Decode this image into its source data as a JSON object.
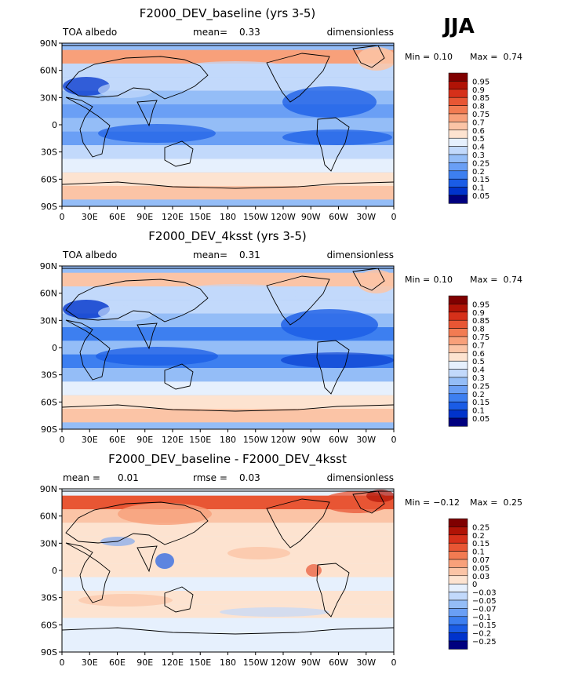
{
  "season_label": "JJA",
  "colors": {
    "baseline_scale": [
      "#00007f",
      "#0033cc",
      "#1a5ce6",
      "#3d7ff0",
      "#6a9ff5",
      "#94bdf7",
      "#c2d9fb",
      "#e6f0fd",
      "#fde3d0",
      "#fbc4a6",
      "#f8a07a",
      "#f27b52",
      "#e85634",
      "#d6301a",
      "#b01306",
      "#7f0000"
    ],
    "diff_scale": [
      "#00007f",
      "#0033cc",
      "#1a5ce6",
      "#3d7ff0",
      "#6a9ff5",
      "#94bdf7",
      "#c2d9fb",
      "#e6f0fd",
      "#fde3d0",
      "#fbc4a6",
      "#f8a07a",
      "#f27b52",
      "#e85634",
      "#d6301a",
      "#b01306",
      "#7f0000"
    ]
  },
  "lat_ticks": [
    "90N",
    "60N",
    "30N",
    "0",
    "30S",
    "60S",
    "90S"
  ],
  "lon_ticks": [
    "0",
    "30E",
    "60E",
    "90E",
    "120E",
    "150E",
    "180",
    "150W",
    "120W",
    "90W",
    "60W",
    "30W",
    "0"
  ],
  "chart_data": [
    {
      "type": "heatmap",
      "title": "F2000_DEV_baseline (yrs 3-5)",
      "left_text": "TOA albedo",
      "center_label": "mean=",
      "center_value": "0.33",
      "right_text": "dimensionless",
      "min_label": "Min =",
      "min_value": "0.10",
      "max_label": "Max =",
      "max_value": "0.74",
      "colorbar_labels": [
        "0.95",
        "0.9",
        "0.85",
        "0.8",
        "0.75",
        "0.7",
        "0.6",
        "0.5",
        "0.4",
        "0.3",
        "0.25",
        "0.2",
        "0.15",
        "0.1",
        "0.05"
      ],
      "zonal_profile": [
        [
          75,
          0.72
        ],
        [
          60,
          0.4
        ],
        [
          45,
          0.38
        ],
        [
          30,
          0.3
        ],
        [
          15,
          0.22
        ],
        [
          0,
          0.3
        ],
        [
          -15,
          0.22
        ],
        [
          -30,
          0.32
        ],
        [
          -45,
          0.48
        ],
        [
          -60,
          0.55
        ],
        [
          -75,
          0.7
        ]
      ]
    },
    {
      "type": "heatmap",
      "title": "F2000_DEV_4ksst (yrs 3-5)",
      "left_text": "TOA albedo",
      "center_label": "mean=",
      "center_value": "0.31",
      "right_text": "dimensionless",
      "min_label": "Min =",
      "min_value": "0.10",
      "max_label": "Max =",
      "max_value": "0.74",
      "colorbar_labels": [
        "0.95",
        "0.9",
        "0.85",
        "0.8",
        "0.75",
        "0.7",
        "0.6",
        "0.5",
        "0.4",
        "0.3",
        "0.25",
        "0.2",
        "0.15",
        "0.1",
        "0.05"
      ],
      "zonal_profile": [
        [
          75,
          0.7
        ],
        [
          60,
          0.38
        ],
        [
          45,
          0.36
        ],
        [
          30,
          0.28
        ],
        [
          15,
          0.2
        ],
        [
          0,
          0.28
        ],
        [
          -15,
          0.2
        ],
        [
          -30,
          0.3
        ],
        [
          -45,
          0.45
        ],
        [
          -60,
          0.52
        ],
        [
          -75,
          0.7
        ]
      ]
    },
    {
      "type": "heatmap",
      "title": "F2000_DEV_baseline - F2000_DEV_4ksst",
      "left_text": "mean =",
      "left_value": "0.01",
      "center_label": "rmse =",
      "center_value": "0.03",
      "right_text": "dimensionless",
      "min_label": "Min =",
      "min_value": "−0.12",
      "max_label": "Max =",
      "max_value": "0.25",
      "colorbar_labels": [
        "0.25",
        "0.2",
        "0.15",
        "0.1",
        "0.07",
        "0.05",
        "0.03",
        "0",
        "−0.03",
        "−0.05",
        "−0.07",
        "−0.1",
        "−0.15",
        "−0.2",
        "−0.25"
      ],
      "zonal_profile": [
        [
          75,
          0.12
        ],
        [
          60,
          0.04
        ],
        [
          45,
          0.02
        ],
        [
          30,
          0.01
        ],
        [
          15,
          0.01
        ],
        [
          0,
          0.02
        ],
        [
          -15,
          0.0
        ],
        [
          -30,
          0.02
        ],
        [
          -45,
          0.01
        ],
        [
          -60,
          0.0
        ],
        [
          -75,
          0.0
        ]
      ]
    }
  ]
}
